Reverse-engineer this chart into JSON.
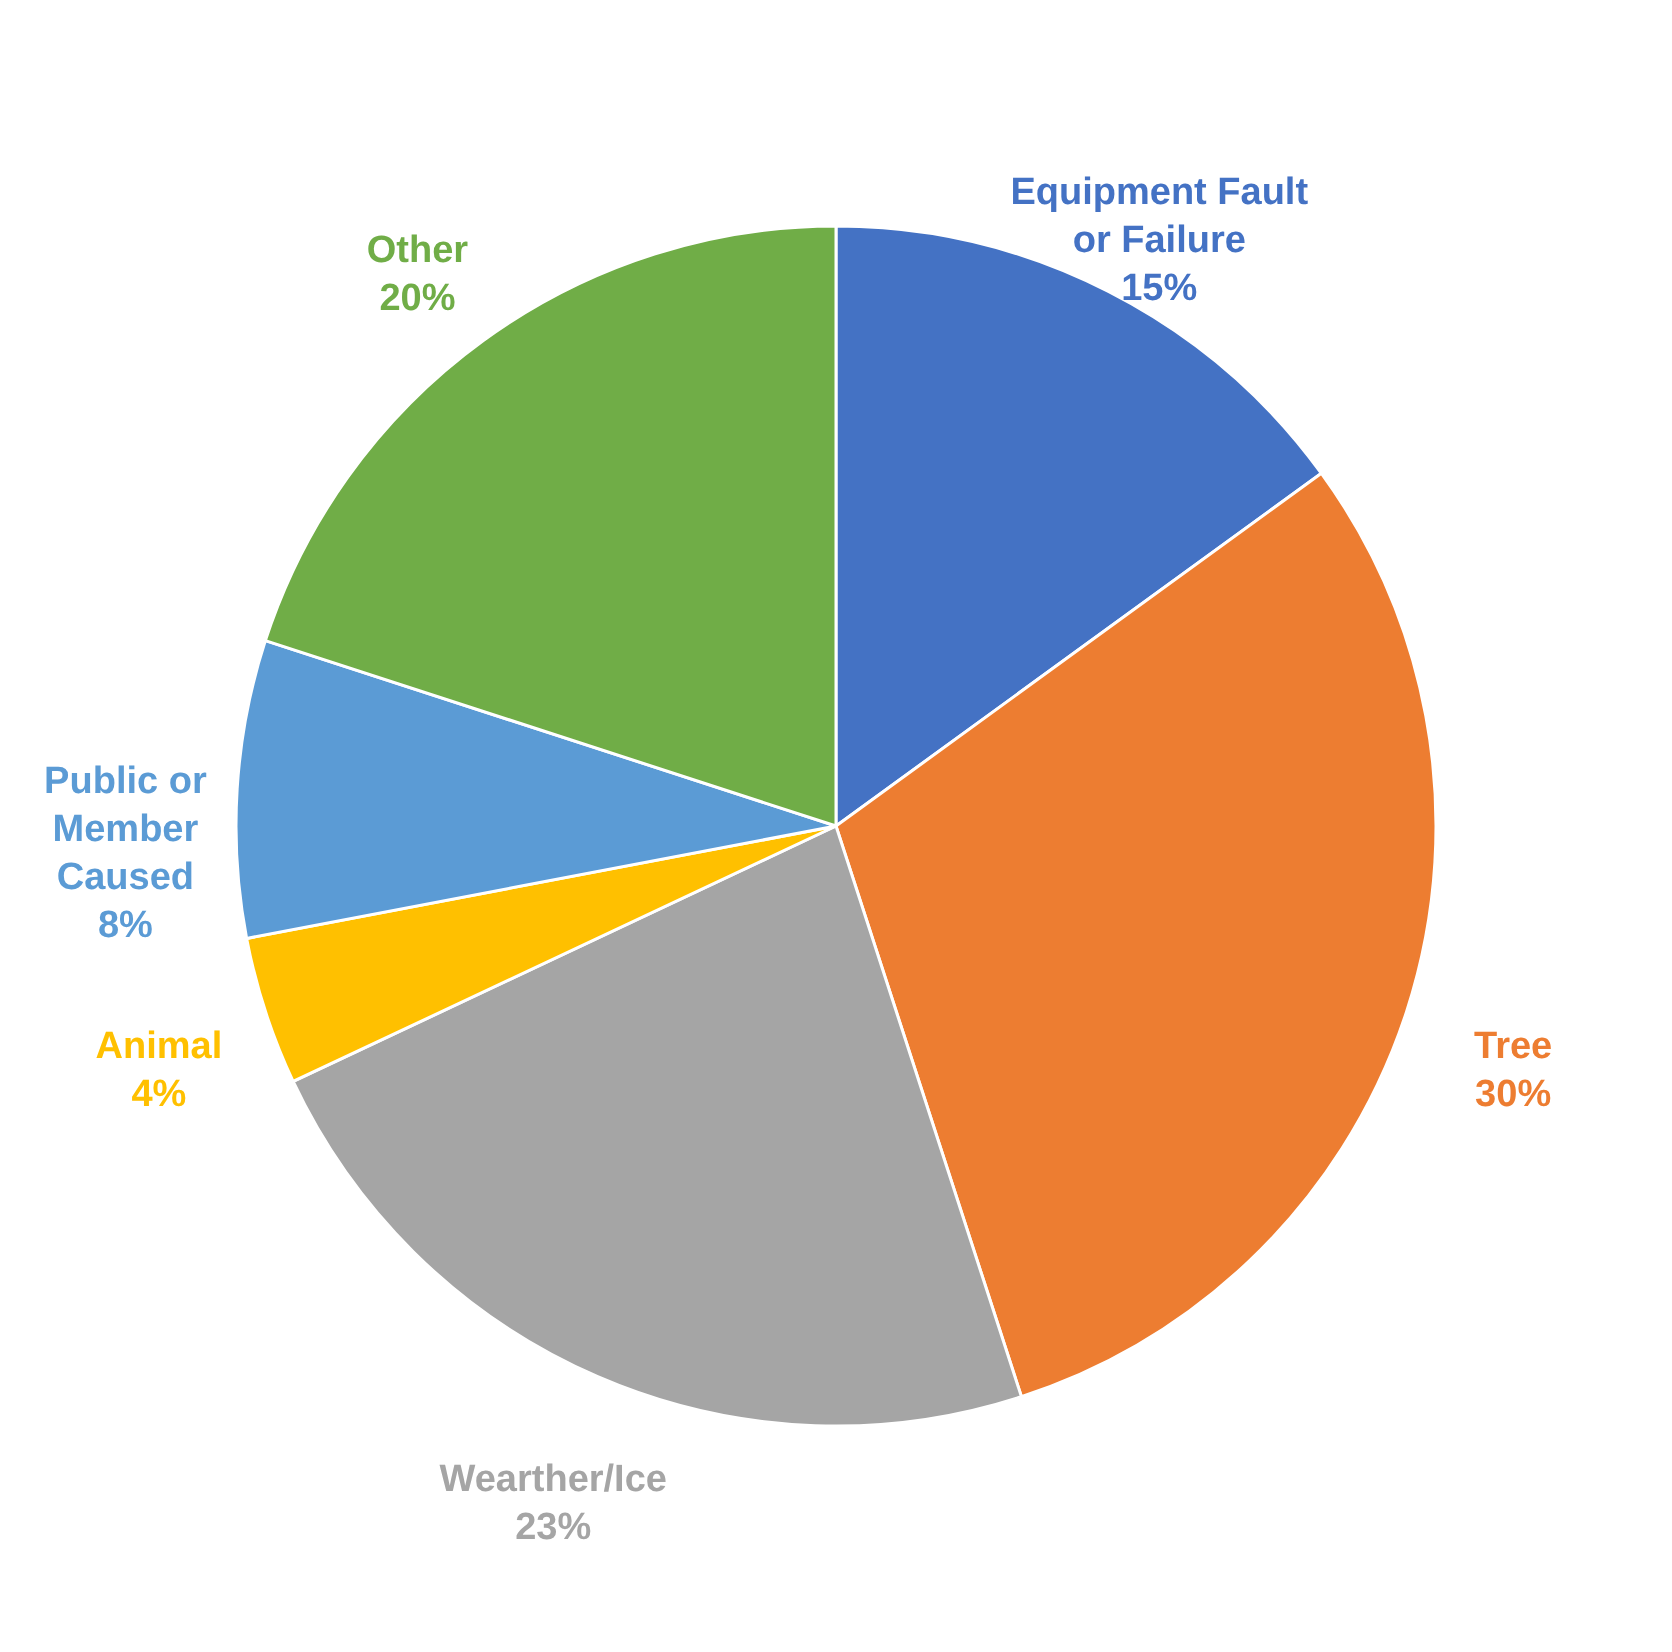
{
  "chart_data": {
    "type": "pie",
    "categories": [
      "Equipment Fault\nor Failure",
      "Tree",
      "Wearther/Ice",
      "Animal",
      "Public or\nMember\nCaused",
      "Other"
    ],
    "values": [
      15,
      30,
      23,
      4,
      8,
      20
    ],
    "value_labels": [
      "15%",
      "30%",
      "23%",
      "4%",
      "8%",
      "20%"
    ],
    "colors": [
      "#4472c4",
      "#ed7d31",
      "#a5a5a5",
      "#ffc000",
      "#5b9bd5",
      "#70ad47"
    ]
  }
}
